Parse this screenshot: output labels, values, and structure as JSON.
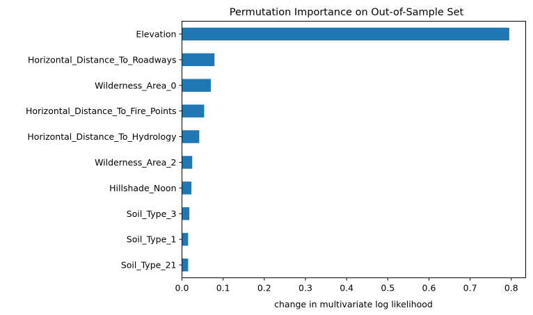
{
  "chart_data": {
    "type": "bar",
    "orientation": "horizontal",
    "title": "Permutation Importance on Out-of-Sample Set",
    "xlabel": "change in multivariate log likelihood",
    "ylabel": "",
    "xlim": [
      0,
      0.835
    ],
    "xticks": [
      0,
      0.1,
      0.2,
      0.3,
      0.4,
      0.5,
      0.6,
      0.7,
      0.8
    ],
    "xtick_labels": [
      "0.0",
      "0.1",
      "0.2",
      "0.3",
      "0.4",
      "0.5",
      "0.6",
      "0.7",
      "0.8"
    ],
    "grid": false,
    "bar_color": "#1f77b4",
    "categories": [
      "Elevation",
      "Horizontal_Distance_To_Roadways",
      "Wilderness_Area_0",
      "Horizontal_Distance_To_Fire_Points",
      "Horizontal_Distance_To_Hydrology",
      "Wilderness_Area_2",
      "Hillshade_Noon",
      "Soil_Type_3",
      "Soil_Type_1",
      "Soil_Type_21"
    ],
    "values": [
      0.795,
      0.079,
      0.07,
      0.054,
      0.042,
      0.025,
      0.023,
      0.018,
      0.015,
      0.015
    ]
  }
}
